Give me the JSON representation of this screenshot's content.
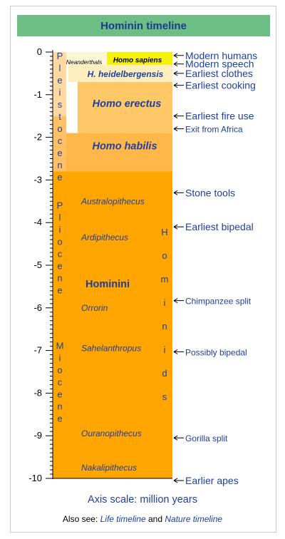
{
  "chart_data": {
    "type": "timeline",
    "title": "Hominin timeline",
    "unit_label": "Axis scale: million years",
    "axis": {
      "min": -10,
      "max": 0,
      "ticks": [
        0,
        -1,
        -2,
        -3,
        -4,
        -5,
        -6,
        -7,
        -8,
        -9,
        -10
      ]
    },
    "epochs": [
      {
        "name": "Pleistocene",
        "from": 0,
        "to": -2.58
      },
      {
        "name": "Pliocene",
        "from": -3.5,
        "to": -5.3
      },
      {
        "name": "Miocene",
        "from": -6.8,
        "to": -10
      }
    ],
    "bands": [
      {
        "label": "Hominini",
        "from": -2.8,
        "to": -10,
        "color": "#ffa500"
      },
      {
        "label": "Homo habilis",
        "from": -1.9,
        "to": -2.8,
        "color": "#ffb74a"
      },
      {
        "label": "Homo erectus",
        "from": -0.7,
        "to": -1.9,
        "color": "#ffc866"
      },
      {
        "label": "H. heidelbergensis",
        "from": -0.3,
        "to": -0.7,
        "color": "#ffeebe"
      },
      {
        "label": "Neanderthals",
        "from": 0,
        "to": -0.3,
        "color": "#fff6d8"
      },
      {
        "label": "Homo sapiens",
        "from": 0,
        "to": -0.3,
        "color": "#f3f30a"
      }
    ],
    "genus_labels": [
      {
        "text": "Australopithecus",
        "y": -3.5
      },
      {
        "text": "Ardipithecus",
        "y": -4.35
      },
      {
        "text": "Hominini",
        "y": -5.45,
        "style": "bold"
      },
      {
        "text": "Orrorin",
        "y": -6.0
      },
      {
        "text": "Sahelanthropus",
        "y": -6.95
      },
      {
        "text": "Ouranopithecus",
        "y": -8.95
      },
      {
        "text": "Nakalipithecus",
        "y": -9.75
      }
    ],
    "vertical_label": "Hominids",
    "events": [
      {
        "text": "Modern humans",
        "y": -0.08
      },
      {
        "text": "Modern speech",
        "y": -0.28
      },
      {
        "text": "Earliest clothes",
        "y": -0.5
      },
      {
        "text": "Earliest cooking",
        "y": -0.78
      },
      {
        "text": "Earliest fire use",
        "y": -1.5
      },
      {
        "text": "Exit from Africa",
        "y": -1.8,
        "small": true
      },
      {
        "text": "Stone tools",
        "y": -3.3
      },
      {
        "text": "Earliest bipedal",
        "y": -4.1
      },
      {
        "text": "Chimpanzee split",
        "y": -5.83,
        "small": true
      },
      {
        "text": "Possibly bipedal",
        "y": -7.03,
        "small": true
      },
      {
        "text": "Gorilla split",
        "y": -9.05,
        "small": true
      },
      {
        "text": "Earlier apes",
        "y": -10.05
      }
    ]
  },
  "footer": {
    "prefix": "Also see: ",
    "link1": "Life timeline",
    "conj": " and ",
    "link2": "Nature timeline"
  },
  "colors": {
    "text_blue": "#1f3f9f",
    "header_green": "#6dbe84"
  }
}
